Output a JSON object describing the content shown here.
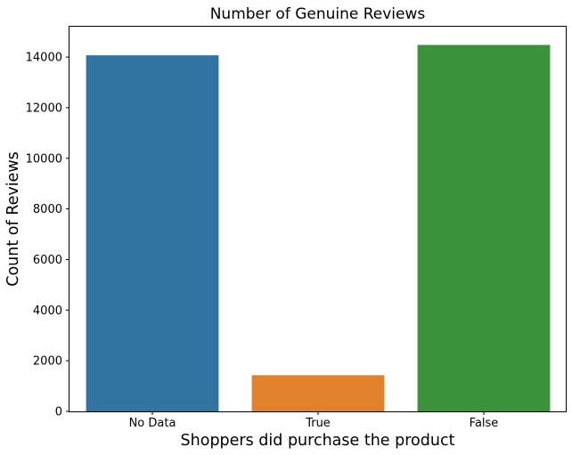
{
  "chart_data": {
    "type": "bar",
    "title": "Number of Genuine Reviews",
    "xlabel": "Shoppers did purchase the product",
    "ylabel": "Count of Reviews",
    "categories": [
      "No Data",
      "True",
      "False"
    ],
    "values": [
      14070,
      1430,
      14480
    ],
    "colors": [
      "#3274a1",
      "#e1812c",
      "#3a923a"
    ],
    "ylim": [
      0,
      15200
    ],
    "yticks": [
      0,
      2000,
      4000,
      6000,
      8000,
      10000,
      12000,
      14000
    ],
    "ytick_labels": [
      "0",
      "2000",
      "4000",
      "6000",
      "8000",
      "10000",
      "12000",
      "14000"
    ],
    "grid": false,
    "legend": "none"
  }
}
